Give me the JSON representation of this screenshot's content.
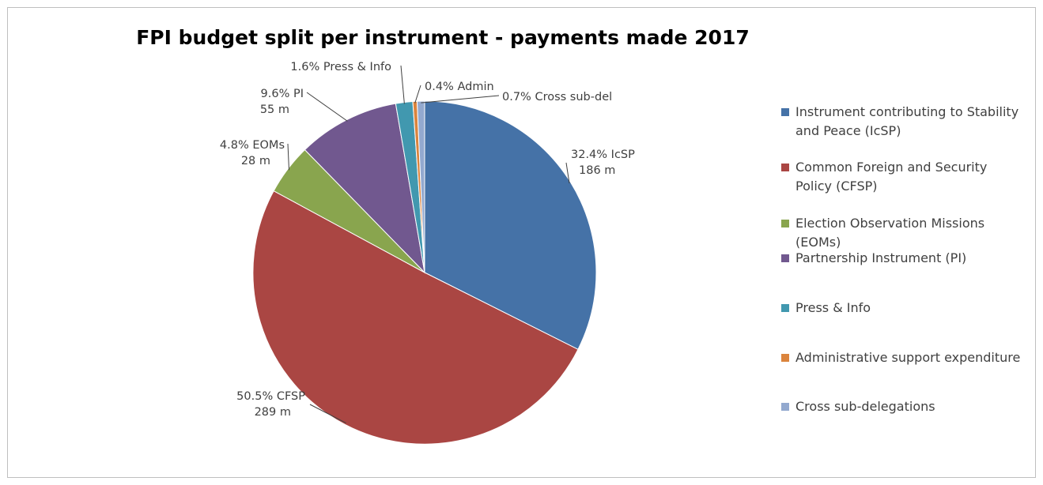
{
  "chart_data": {
    "type": "pie",
    "title": "FPI budget split per instrument - payments made 2017",
    "legend_position": "right",
    "slices": [
      {
        "legend": "Instrument contributing to Stability and Peace (IcSP)",
        "legend_lines": [
          "Instrument contributing to Stability",
          "and Peace (IcSP)"
        ],
        "value": 32.4,
        "label_lines": [
          "32.4% IcSP",
          "186 m"
        ],
        "color": "#4572A7"
      },
      {
        "legend": "Common Foreign and Security Policy (CFSP)",
        "legend_lines": [
          "Common Foreign and Security",
          "Policy (CFSP)"
        ],
        "value": 50.5,
        "label_lines": [
          "50.5% CFSP",
          "289 m"
        ],
        "color": "#AA4643"
      },
      {
        "legend": "Election Observation Missions (EOMs)",
        "legend_lines": [
          "Election Observation Missions",
          "(EOMs)"
        ],
        "value": 4.8,
        "label_lines": [
          "4.8% EOMs",
          "28 m"
        ],
        "color": "#89A54E"
      },
      {
        "legend": "Partnership Instrument (PI)",
        "legend_lines": [
          "Partnership Instrument (PI)"
        ],
        "value": 9.6,
        "label_lines": [
          "9.6% PI",
          "55 m"
        ],
        "color": "#71588F"
      },
      {
        "legend": "Press & Info",
        "legend_lines": [
          "Press & Info"
        ],
        "value": 1.6,
        "label_lines": [
          "1.6% Press & Info"
        ],
        "color": "#4198AF"
      },
      {
        "legend": "Administrative support expenditure",
        "legend_lines": [
          "Administrative support expenditure"
        ],
        "value": 0.4,
        "label_lines": [
          "0.4% Admin"
        ],
        "color": "#DB843D"
      },
      {
        "legend": "Cross sub-delegations",
        "legend_lines": [
          "Cross sub-delegations"
        ],
        "value": 0.7,
        "label_lines": [
          "0.7% Cross sub-del"
        ],
        "color": "#93A9CF"
      }
    ]
  }
}
